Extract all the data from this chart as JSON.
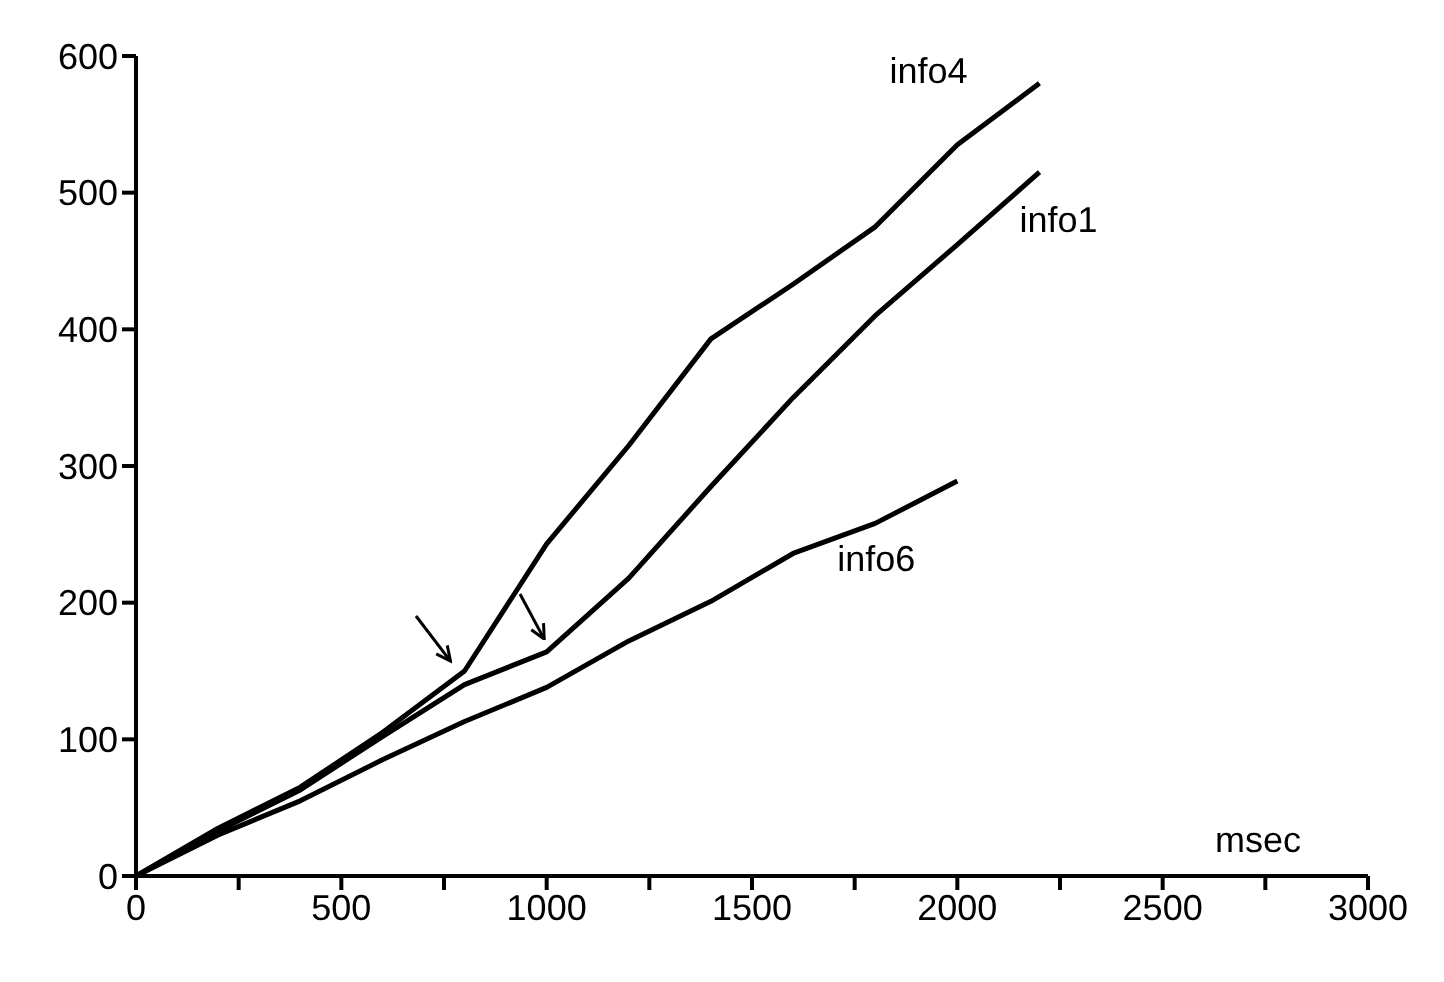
{
  "chart_data": {
    "type": "line",
    "xlabel": "msec",
    "x": [
      0,
      200,
      400,
      600,
      800,
      1000,
      1200,
      1400,
      1600,
      1800,
      2000,
      2200
    ],
    "series": [
      {
        "name": "info4",
        "color": "#000000",
        "values": [
          0,
          35,
          65,
          105,
          150,
          243,
          315,
          393,
          433,
          475,
          535,
          580
        ]
      },
      {
        "name": "info1",
        "color": "#000000",
        "values": [
          0,
          33,
          63,
          102,
          140,
          164,
          218,
          285,
          350,
          410,
          462,
          515
        ]
      },
      {
        "name": "info6",
        "color": "#000000",
        "values": [
          0,
          30,
          55,
          85,
          113,
          138,
          172,
          201,
          236,
          258,
          289,
          null
        ]
      }
    ],
    "xlim": [
      0,
      3000
    ],
    "xticks": [
      0,
      {
        "value": 250,
        "label": null
      },
      500,
      {
        "value": 750,
        "label": null
      },
      1000,
      {
        "value": 1250,
        "label": null
      },
      1500,
      {
        "value": 1750,
        "label": null
      },
      2000,
      {
        "value": 2250,
        "label": null
      },
      2500,
      {
        "value": 2750,
        "label": null
      },
      3000
    ],
    "ylim": [
      0,
      600
    ],
    "yticks": [
      0,
      100,
      200,
      300,
      400,
      500,
      600
    ],
    "grid": false,
    "legend": false,
    "marker": "none",
    "line_style": "solid"
  }
}
